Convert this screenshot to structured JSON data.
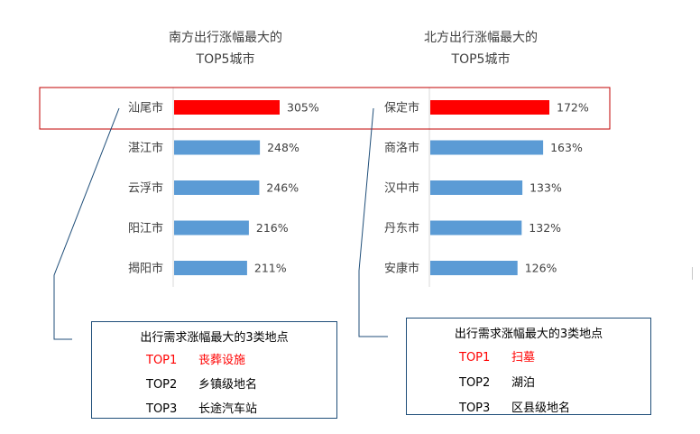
{
  "colors": {
    "highlight": "#ff0000",
    "bar": "#5b9bd5",
    "axis": "#d9d9d9",
    "callout": "#1f4e79",
    "frame": "#c00000"
  },
  "chart_data": [
    {
      "type": "bar",
      "orientation": "horizontal",
      "title_line1": "南方出行涨幅最大的",
      "title_line2": "TOP5城市",
      "categories": [
        "汕尾市",
        "湛江市",
        "云浮市",
        "阳江市",
        "揭阳市"
      ],
      "values": [
        305,
        248,
        246,
        216,
        211
      ],
      "value_labels": [
        "305%",
        "248%",
        "246%",
        "216%",
        "211%"
      ],
      "unit": "%",
      "highlight_index": 0
    },
    {
      "type": "bar",
      "orientation": "horizontal",
      "title_line1": "北方出行涨幅最大的",
      "title_line2": "TOP5城市",
      "categories": [
        "保定市",
        "商洛市",
        "汉中市",
        "丹东市",
        "安康市"
      ],
      "values": [
        172,
        163,
        133,
        132,
        126
      ],
      "value_labels": [
        "172%",
        "163%",
        "133%",
        "132%",
        "126%"
      ],
      "unit": "%",
      "highlight_index": 0
    }
  ],
  "south_box": {
    "title": "出行需求涨幅最大的3类地点",
    "items": [
      {
        "rank": "TOP1",
        "name": "丧葬设施"
      },
      {
        "rank": "TOP2",
        "name": "乡镇级地名"
      },
      {
        "rank": "TOP3",
        "name": "长途汽车站"
      }
    ]
  },
  "north_box": {
    "title": "出行需求涨幅最大的3类地点",
    "items": [
      {
        "rank": "TOP1",
        "name": "扫墓"
      },
      {
        "rank": "TOP2",
        "name": "湖泊"
      },
      {
        "rank": "TOP3",
        "name": "区县级地名"
      }
    ]
  }
}
